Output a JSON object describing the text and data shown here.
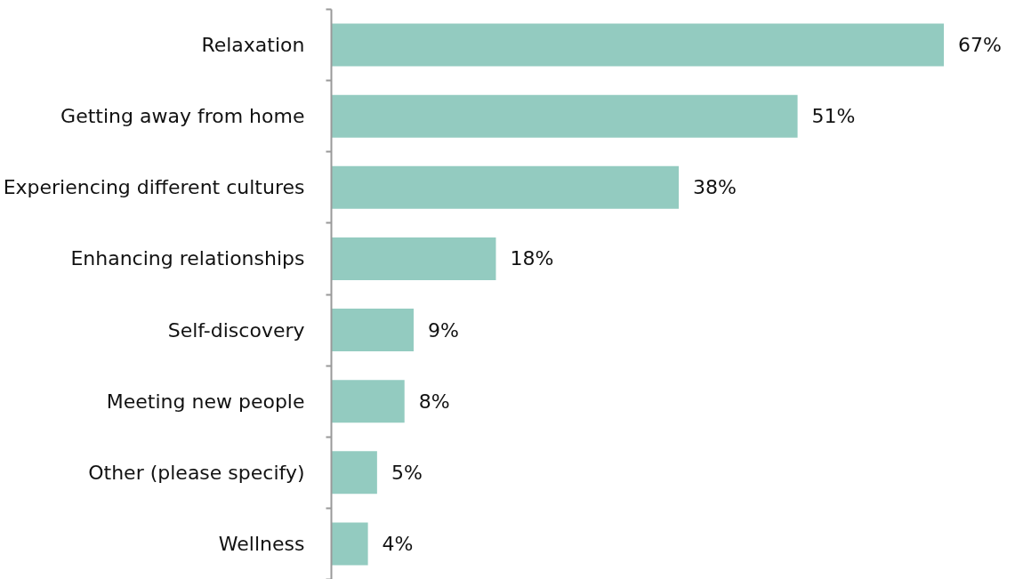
{
  "chart_data": {
    "type": "bar",
    "orientation": "horizontal",
    "categories": [
      "Relaxation",
      "Getting away from home",
      "Experiencing different cultures",
      "Enhancing relationships",
      "Self-discovery",
      "Meeting new people",
      "Other (please specify)",
      "Wellness"
    ],
    "values": [
      67,
      51,
      38,
      18,
      9,
      8,
      5,
      4
    ],
    "value_labels": [
      "67%",
      "51%",
      "38%",
      "18%",
      "9%",
      "8%",
      "5%",
      "4%"
    ],
    "color": "#93cbc0",
    "grid": false
  }
}
